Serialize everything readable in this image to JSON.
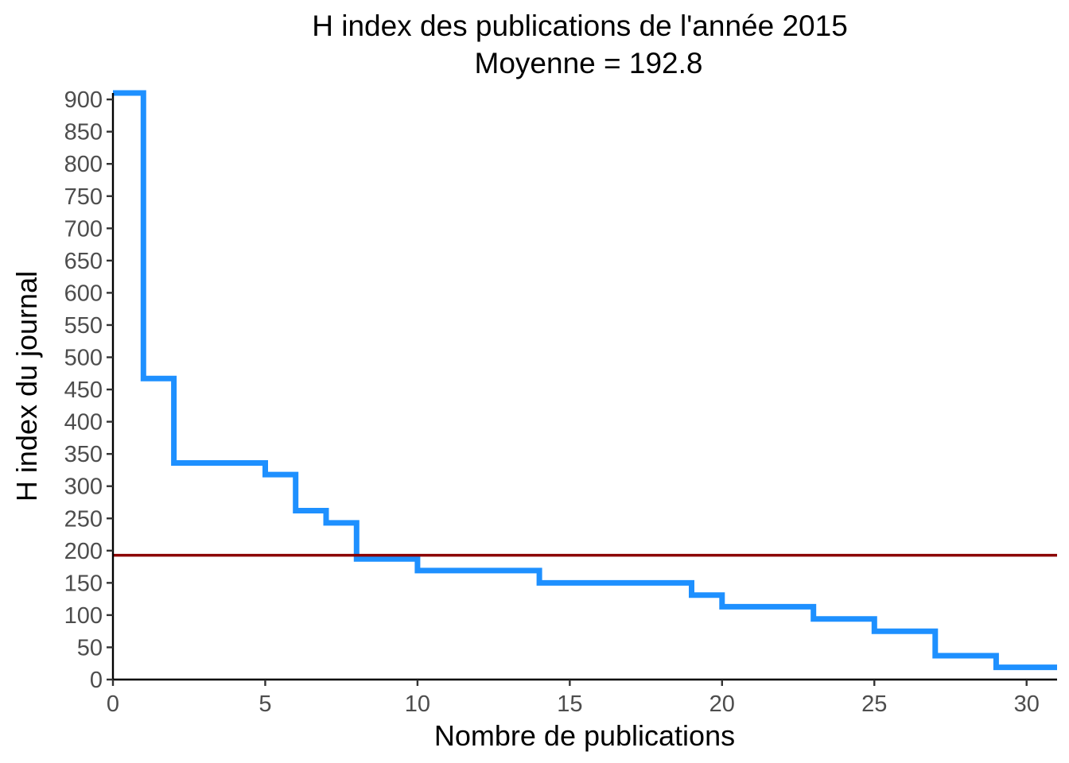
{
  "chart_data": {
    "type": "line",
    "step": "hv",
    "title": "H index des publications de l'année 2015",
    "subtitle": "Moyenne = 192.8",
    "xlabel": "Nombre de publications",
    "ylabel": "H index du journal",
    "xlim": [
      0,
      31
    ],
    "ylim": [
      0,
      910
    ],
    "x_ticks": [
      0,
      5,
      10,
      15,
      20,
      25,
      30
    ],
    "y_ticks": [
      0,
      50,
      100,
      150,
      200,
      250,
      300,
      350,
      400,
      450,
      500,
      550,
      600,
      650,
      700,
      750,
      800,
      850,
      900
    ],
    "grid": false,
    "legend": "none",
    "series": [
      {
        "x": [
          0,
          1,
          2,
          5,
          6,
          7,
          8,
          10,
          14,
          19,
          20,
          23,
          25,
          27,
          29,
          31
        ],
        "y": [
          910,
          467,
          336,
          318,
          262,
          243,
          187,
          169,
          150,
          131,
          113,
          94,
          75,
          37,
          19,
          19
        ],
        "color": "#1e90ff"
      }
    ],
    "reference_line": {
      "y": 192.8,
      "color": "#8b0000"
    }
  }
}
